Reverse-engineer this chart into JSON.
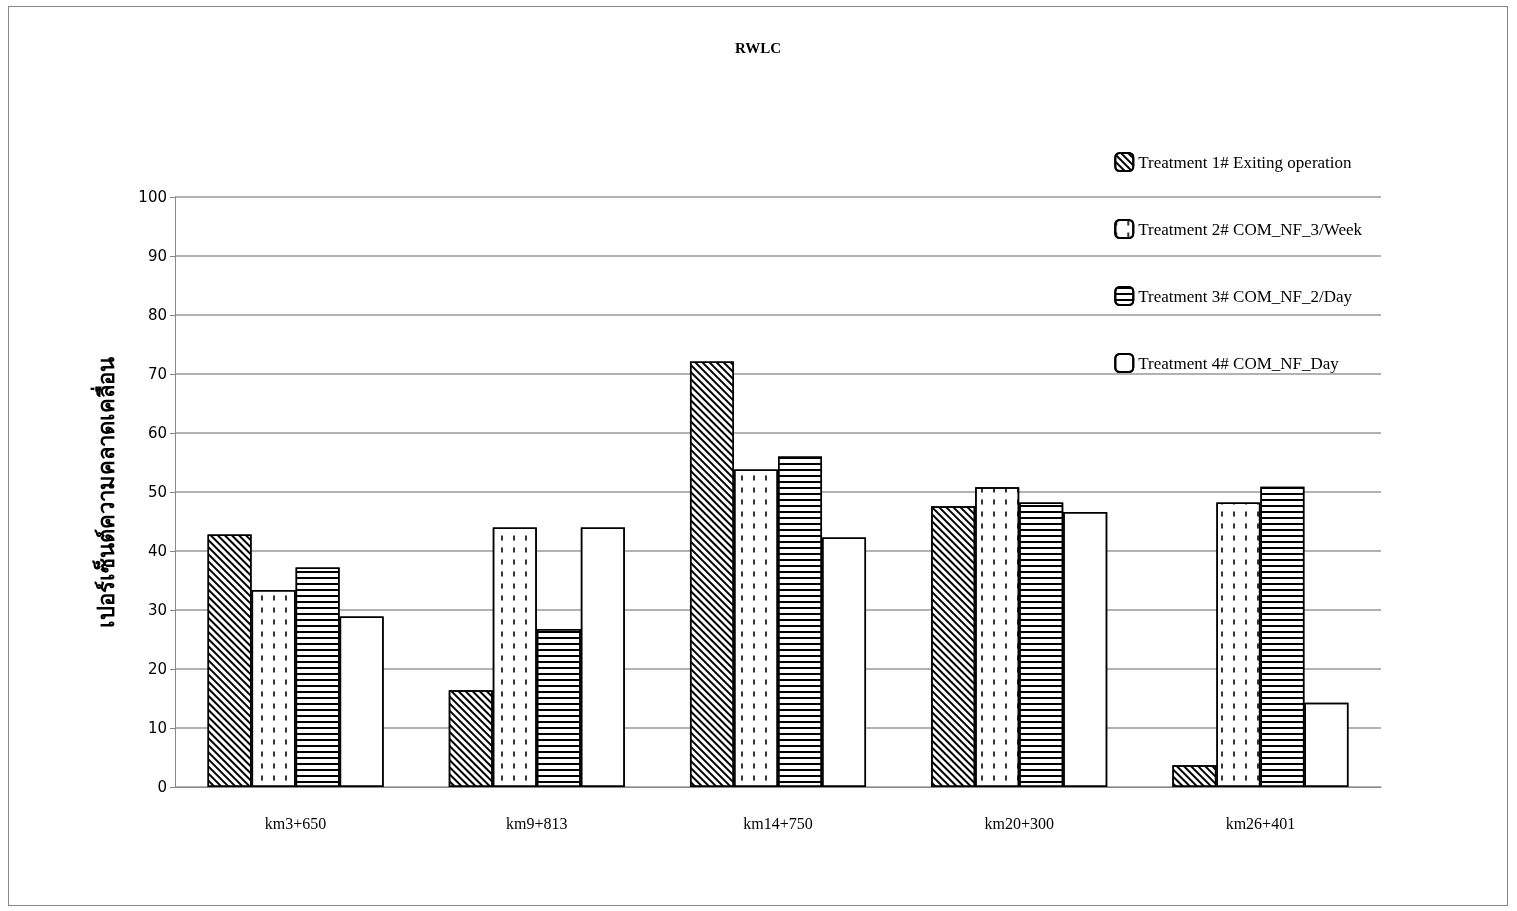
{
  "chart_data": {
    "type": "bar",
    "title": "RWLC",
    "ylabel": "เปอร์เซ็นต์ความคลาดเคลื่อน",
    "categories": [
      "km3+650",
      "km9+813",
      "km14+750",
      "km20+300",
      "km26+401"
    ],
    "series": [
      {
        "name": "Treatment 1# Exiting operation",
        "color": "#ffffff",
        "values": [
          42.8,
          16.4,
          72.1,
          47.6,
          3.7
        ]
      },
      {
        "name": "Treatment 2# COM_NF_3/Week",
        "color": "#ffffff",
        "values": [
          33.4,
          44.0,
          53.8,
          50.8,
          48.2
        ]
      },
      {
        "name": "Treatment 3# COM_NF_2/Day",
        "color": "#ffffff",
        "values": [
          37.2,
          26.8,
          56.0,
          48.2,
          50.9
        ]
      },
      {
        "name": "Treatment 4# COM_NF_Day",
        "color": "#ffffff",
        "values": [
          28.9,
          44.0,
          42.3,
          46.6,
          14.3
        ]
      }
    ],
    "ylim": [
      0,
      100
    ],
    "yticks": [
      0,
      10,
      20,
      30,
      40,
      50,
      60,
      70,
      80,
      90,
      100
    ],
    "grid": "y",
    "legend": "top right"
  }
}
